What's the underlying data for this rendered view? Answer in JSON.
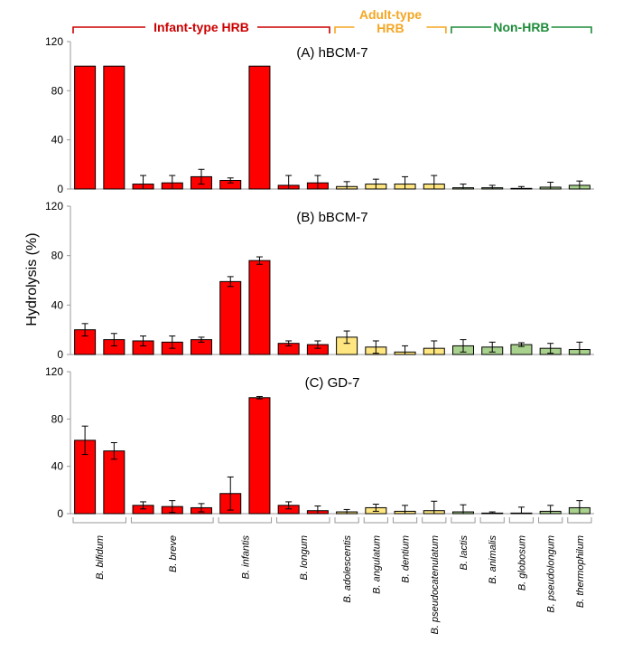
{
  "chart_data": {
    "type": "bar",
    "ylabel": "Hydrolysis (%)",
    "ylim": [
      0,
      120
    ],
    "yticks": [
      0,
      40,
      80,
      120
    ],
    "groups": [
      {
        "label": "Infant-type HRB",
        "color": "#cc0000",
        "bar_color": "#ff0000",
        "bar_count": 9
      },
      {
        "label": "Adult-type HRB",
        "color": "#f5a623",
        "bar_color": "#ffe680",
        "bar_count": 4
      },
      {
        "label": "Non-HRB",
        "color": "#1e8c3a",
        "bar_color": "#a9d18e",
        "bar_count": 5
      }
    ],
    "species": [
      {
        "label": "B. bifidum",
        "bars": 2
      },
      {
        "label": "B. breve",
        "bars": 3
      },
      {
        "label": "B. infantis",
        "bars": 2
      },
      {
        "label": "B. longum",
        "bars": 2
      },
      {
        "label": "B. adolescentis",
        "bars": 1
      },
      {
        "label": "B. angulatum",
        "bars": 1
      },
      {
        "label": "B. dentium",
        "bars": 1
      },
      {
        "label": "B. pseudocatenulatum",
        "bars": 1
      },
      {
        "label": "B. lactis",
        "bars": 1
      },
      {
        "label": "B. animalis",
        "bars": 1
      },
      {
        "label": "B. globosum",
        "bars": 1
      },
      {
        "label": "B. pseudolongum",
        "bars": 1
      },
      {
        "label": "B. thermophilum",
        "bars": 1
      }
    ],
    "panels": [
      {
        "title": "(A) hBCM-7",
        "values": [
          100,
          100,
          4,
          5,
          10,
          7,
          100,
          3,
          5,
          2,
          4,
          4,
          4,
          1,
          1,
          0.5,
          1.5,
          3
        ],
        "errors": [
          0,
          0,
          7,
          6,
          6,
          2,
          0,
          8,
          6,
          4,
          4,
          6,
          7,
          3,
          2,
          1.5,
          4,
          3.5
        ]
      },
      {
        "title": "(B) bBCM-7",
        "values": [
          20,
          12,
          11,
          10,
          12,
          59,
          76,
          9,
          8,
          14,
          6,
          2,
          5,
          7,
          6,
          8,
          5,
          4
        ],
        "errors": [
          5,
          5,
          4,
          5,
          2,
          4,
          3,
          2,
          3,
          5,
          5,
          5,
          6,
          5,
          4,
          1.5,
          4,
          6
        ]
      },
      {
        "title": "(C) GD-7",
        "values": [
          62,
          53,
          7,
          6,
          5,
          17,
          98,
          7,
          2.5,
          1.5,
          5,
          2,
          2.5,
          1.5,
          0.5,
          0.5,
          2,
          5
        ],
        "errors": [
          12,
          7,
          3,
          5,
          3.5,
          14,
          1,
          3,
          4,
          2,
          3,
          5,
          8,
          6,
          1,
          5,
          5,
          6
        ]
      }
    ]
  }
}
